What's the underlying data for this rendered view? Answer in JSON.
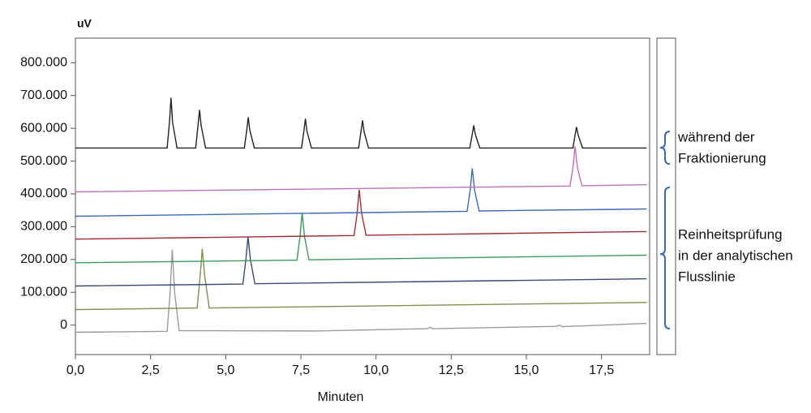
{
  "chart_data": {
    "type": "line",
    "y_label": "uV",
    "x_label": "Minuten",
    "xlim": [
      0,
      19.1
    ],
    "ylim": [
      -90000,
      875000
    ],
    "xticks": [
      {
        "value": 0,
        "label": "0,0"
      },
      {
        "value": 2.5,
        "label": "2,5"
      },
      {
        "value": 5,
        "label": "5,0"
      },
      {
        "value": 7.5,
        "label": "7,5"
      },
      {
        "value": 10,
        "label": "10,0"
      },
      {
        "value": 12.5,
        "label": "12,5"
      },
      {
        "value": 15,
        "label": "15,0"
      },
      {
        "value": 17.5,
        "label": "17,5"
      }
    ],
    "yticks": [
      0,
      {
        "value": 100000,
        "label": "100.000"
      },
      {
        "value": 200000,
        "label": "200.000"
      },
      {
        "value": 300000,
        "label": "300.000"
      },
      {
        "value": 400000,
        "label": "400.000"
      },
      {
        "value": 500000,
        "label": "500.000"
      },
      {
        "value": 600000,
        "label": "600.000"
      },
      {
        "value": 700000,
        "label": "700.000"
      },
      {
        "value": 800000,
        "label": "800.000"
      }
    ],
    "series": [
      {
        "color": "#9a9a9a",
        "x": [
          0,
          3.05,
          3.15,
          3.22,
          3.3,
          3.45,
          8,
          11.7,
          11.8,
          11.9,
          16.0,
          16.1,
          16.2,
          19
        ],
        "values": [
          -22000,
          -19000,
          100000,
          230000,
          100000,
          -17000,
          -18000,
          -11000,
          -7000,
          -11000,
          -4000,
          0,
          -5000,
          5000
        ]
      },
      {
        "color": "#8a8a50",
        "x": [
          0,
          4.05,
          4.15,
          4.22,
          4.3,
          4.45,
          19
        ],
        "values": [
          47000,
          52000,
          150000,
          233000,
          150000,
          52000,
          69000
        ]
      },
      {
        "color": "#3a4a7a",
        "x": [
          0,
          5.57,
          5.67,
          5.74,
          5.82,
          5.97,
          19
        ],
        "values": [
          119000,
          125000,
          200000,
          270000,
          200000,
          126000,
          141000
        ]
      },
      {
        "color": "#3a9a5a",
        "x": [
          0,
          7.37,
          7.47,
          7.54,
          7.62,
          7.77,
          19
        ],
        "values": [
          190000,
          198000,
          270000,
          342000,
          270000,
          199000,
          213000
        ]
      },
      {
        "color": "#a03030",
        "x": [
          0,
          9.27,
          9.37,
          9.44,
          9.52,
          9.67,
          19
        ],
        "values": [
          262000,
          273000,
          340000,
          413000,
          340000,
          274000,
          285000
        ]
      },
      {
        "color": "#3a6ab8",
        "x": [
          0,
          13.03,
          13.13,
          13.2,
          13.28,
          13.43,
          19
        ],
        "values": [
          332000,
          347000,
          410000,
          478000,
          410000,
          348000,
          354000
        ]
      },
      {
        "color": "#c070b8",
        "x": [
          0,
          16.45,
          16.55,
          16.62,
          16.7,
          16.85,
          19
        ],
        "values": [
          406000,
          424000,
          480000,
          545000,
          480000,
          425000,
          428000
        ]
      },
      {
        "color": "#222222",
        "x": [
          0,
          3.05,
          3.13,
          3.18,
          3.23,
          3.38,
          4.0,
          4.08,
          4.13,
          4.18,
          4.33,
          5.62,
          5.7,
          5.75,
          5.8,
          5.95,
          7.52,
          7.6,
          7.65,
          7.7,
          7.85,
          9.42,
          9.5,
          9.55,
          9.6,
          9.75,
          13.12,
          13.2,
          13.25,
          13.3,
          13.45,
          16.55,
          16.62,
          16.67,
          16.72,
          16.87,
          19
        ],
        "values": [
          540000,
          540000,
          620000,
          693000,
          620000,
          540000,
          540000,
          610000,
          656000,
          610000,
          540000,
          540000,
          595000,
          634000,
          595000,
          540000,
          540000,
          592000,
          629000,
          592000,
          540000,
          540000,
          590000,
          624000,
          590000,
          540000,
          540000,
          582000,
          609000,
          582000,
          540000,
          540000,
          580000,
          604000,
          580000,
          540000,
          540000
        ]
      }
    ],
    "annotations": [
      {
        "lines": [
          "während der",
          "Fraktionierung"
        ]
      },
      {
        "lines": [
          "Reinheitsprüfung",
          "in der analytischen",
          "Flusslinie"
        ]
      }
    ]
  }
}
